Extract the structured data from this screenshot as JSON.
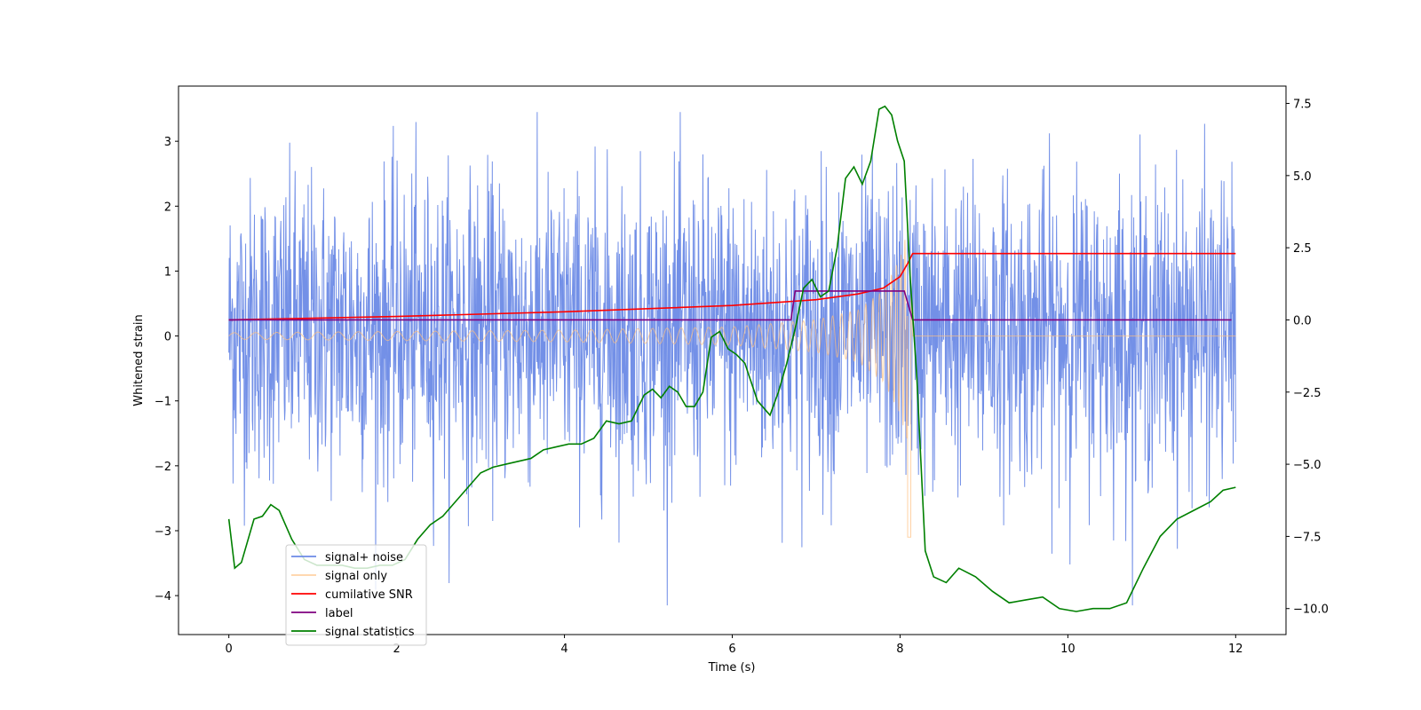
{
  "chart_data": {
    "type": "line",
    "title": "",
    "xlabel": "Time (s)",
    "ylabel": "Whitened strain",
    "y2label": "",
    "xlim": [
      -0.6,
      12.6
    ],
    "ylim": [
      -4.6,
      3.85
    ],
    "y2lim": [
      -10.9,
      8.1
    ],
    "xticks": [
      0,
      2,
      4,
      6,
      8,
      10,
      12
    ],
    "yticks": [
      -4,
      -3,
      -2,
      -1,
      0,
      1,
      2,
      3
    ],
    "y2ticks": [
      -10.0,
      -7.5,
      -5.0,
      -2.5,
      0.0,
      2.5,
      5.0,
      7.5
    ],
    "xtick_labels": [
      "0",
      "2",
      "4",
      "6",
      "8",
      "10",
      "12"
    ],
    "ytick_labels": [
      "−4",
      "−3",
      "−2",
      "−1",
      "0",
      "1",
      "2",
      "3"
    ],
    "y2tick_labels": [
      "−10.0",
      "−7.5",
      "−5.0",
      "−2.5",
      "0.0",
      "2.5",
      "5.0",
      "7.5"
    ],
    "grid": false,
    "legend_position": "lower-left",
    "series": [
      {
        "name": "signal+ noise",
        "axis": "left",
        "color": "#6b8ae6",
        "style": "dense noise band",
        "x_range": [
          0,
          12
        ],
        "typical_range": [
          -1.5,
          1.7
        ],
        "extremes": [
          -4.15,
          3.45
        ]
      },
      {
        "name": "signal only",
        "axis": "left",
        "color": "#ffbf7f",
        "style": "chirp, growing amplitude",
        "x": [
          0,
          2,
          4,
          6,
          7,
          7.5,
          7.8,
          8.0,
          8.1,
          8.15,
          12
        ],
        "amplitude": [
          0.05,
          0.07,
          0.09,
          0.14,
          0.25,
          0.4,
          0.7,
          1.2,
          1.7,
          0.0,
          0.0
        ],
        "min_at_merger": -3.1
      },
      {
        "name": "cumilative SNR",
        "axis": "right",
        "color": "#ff0000",
        "x": [
          0,
          2,
          4,
          6,
          7,
          7.5,
          7.8,
          8.0,
          8.1,
          8.15,
          12
        ],
        "y": [
          0.0,
          0.12,
          0.28,
          0.5,
          0.7,
          0.9,
          1.1,
          1.5,
          2.0,
          2.3,
          2.3
        ]
      },
      {
        "name": "label",
        "axis": "right",
        "color": "#7f007f",
        "x": [
          0,
          6.7,
          6.75,
          8.05,
          8.15,
          11.95
        ],
        "y": [
          0,
          0,
          1,
          1,
          0,
          0
        ]
      },
      {
        "name": "signal statistics",
        "axis": "right",
        "color": "#008000",
        "x": [
          0,
          0.07,
          0.15,
          0.3,
          0.4,
          0.5,
          0.6,
          0.75,
          0.9,
          1.05,
          1.2,
          1.35,
          1.5,
          1.65,
          1.8,
          1.95,
          2.1,
          2.25,
          2.4,
          2.55,
          2.7,
          2.85,
          3.0,
          3.15,
          3.3,
          3.45,
          3.6,
          3.75,
          3.9,
          4.05,
          4.2,
          4.35,
          4.5,
          4.65,
          4.8,
          4.95,
          5.05,
          5.15,
          5.25,
          5.35,
          5.45,
          5.55,
          5.65,
          5.75,
          5.85,
          5.95,
          6.05,
          6.15,
          6.3,
          6.45,
          6.55,
          6.65,
          6.75,
          6.85,
          6.95,
          7.05,
          7.15,
          7.25,
          7.35,
          7.45,
          7.55,
          7.65,
          7.75,
          7.82,
          7.9,
          7.97,
          8.05,
          8.12,
          8.2,
          8.3,
          8.4,
          8.55,
          8.7,
          8.9,
          9.1,
          9.3,
          9.5,
          9.7,
          9.9,
          10.1,
          10.3,
          10.5,
          10.7,
          10.9,
          11.1,
          11.3,
          11.5,
          11.7,
          11.85,
          12.0
        ],
        "y": [
          -6.9,
          -8.6,
          -8.4,
          -6.9,
          -6.8,
          -6.4,
          -6.6,
          -7.6,
          -8.3,
          -8.5,
          -8.5,
          -8.5,
          -8.6,
          -8.6,
          -8.5,
          -8.5,
          -8.3,
          -7.6,
          -7.1,
          -6.8,
          -6.3,
          -5.8,
          -5.3,
          -5.1,
          -5.0,
          -4.9,
          -4.8,
          -4.5,
          -4.4,
          -4.3,
          -4.3,
          -4.1,
          -3.5,
          -3.6,
          -3.5,
          -2.6,
          -2.4,
          -2.7,
          -2.3,
          -2.5,
          -3.0,
          -3.0,
          -2.5,
          -0.6,
          -0.4,
          -1.0,
          -1.2,
          -1.5,
          -2.8,
          -3.3,
          -2.5,
          -1.5,
          -0.3,
          1.1,
          1.4,
          0.8,
          1.0,
          2.5,
          4.9,
          5.3,
          4.7,
          5.5,
          7.3,
          7.4,
          7.1,
          6.2,
          5.5,
          1.5,
          -2.0,
          -8.0,
          -8.9,
          -9.1,
          -8.6,
          -8.9,
          -9.4,
          -9.8,
          -9.7,
          -9.6,
          -10.0,
          -10.1,
          -10.0,
          -10.0,
          -9.8,
          -8.6,
          -7.5,
          -6.9,
          -6.6,
          -6.3,
          -5.9,
          -5.8
        ]
      }
    ]
  }
}
